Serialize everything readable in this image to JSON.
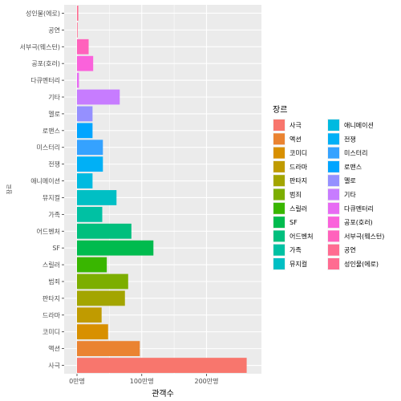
{
  "chart_data": {
    "type": "bar",
    "orientation": "horizontal",
    "xlabel": "관객수",
    "ylabel": "장르",
    "xlim": [
      0,
      2650000
    ],
    "x_ticks": [
      {
        "value": 0,
        "label": "0만명"
      },
      {
        "value": 1000000,
        "label": "100만명"
      },
      {
        "value": 2000000,
        "label": "200만명"
      }
    ],
    "grid": true,
    "legend": {
      "title": "장르",
      "position": "right",
      "columns": 2
    },
    "categories": [
      "사극",
      "액션",
      "코미디",
      "드라마",
      "판타지",
      "범죄",
      "스릴러",
      "SF",
      "어드벤처",
      "가족",
      "뮤지컬",
      "애니메이션",
      "전쟁",
      "미스터리",
      "로맨스",
      "멜로",
      "기타",
      "다큐멘터리",
      "공포(호러)",
      "서부극(웨스턴)",
      "공연",
      "성인물(에로)"
    ],
    "values": [
      2620000,
      970000,
      480000,
      380000,
      740000,
      790000,
      460000,
      1180000,
      840000,
      390000,
      610000,
      240000,
      400000,
      400000,
      240000,
      240000,
      660000,
      30000,
      250000,
      180000,
      10000,
      20000
    ],
    "colors": [
      "#F8766D",
      "#EA8331",
      "#D89000",
      "#C09B00",
      "#A3A500",
      "#7CAE00",
      "#39B600",
      "#00BB4E",
      "#00BF7D",
      "#00C1A3",
      "#00BFC4",
      "#00BAE0",
      "#00B0F6",
      "#35A2FF",
      "#00A5FF",
      "#9590FF",
      "#C77CFF",
      "#E76BF3",
      "#FA62DB",
      "#FF62BC",
      "#FF6C91",
      "#FF6C91"
    ]
  }
}
